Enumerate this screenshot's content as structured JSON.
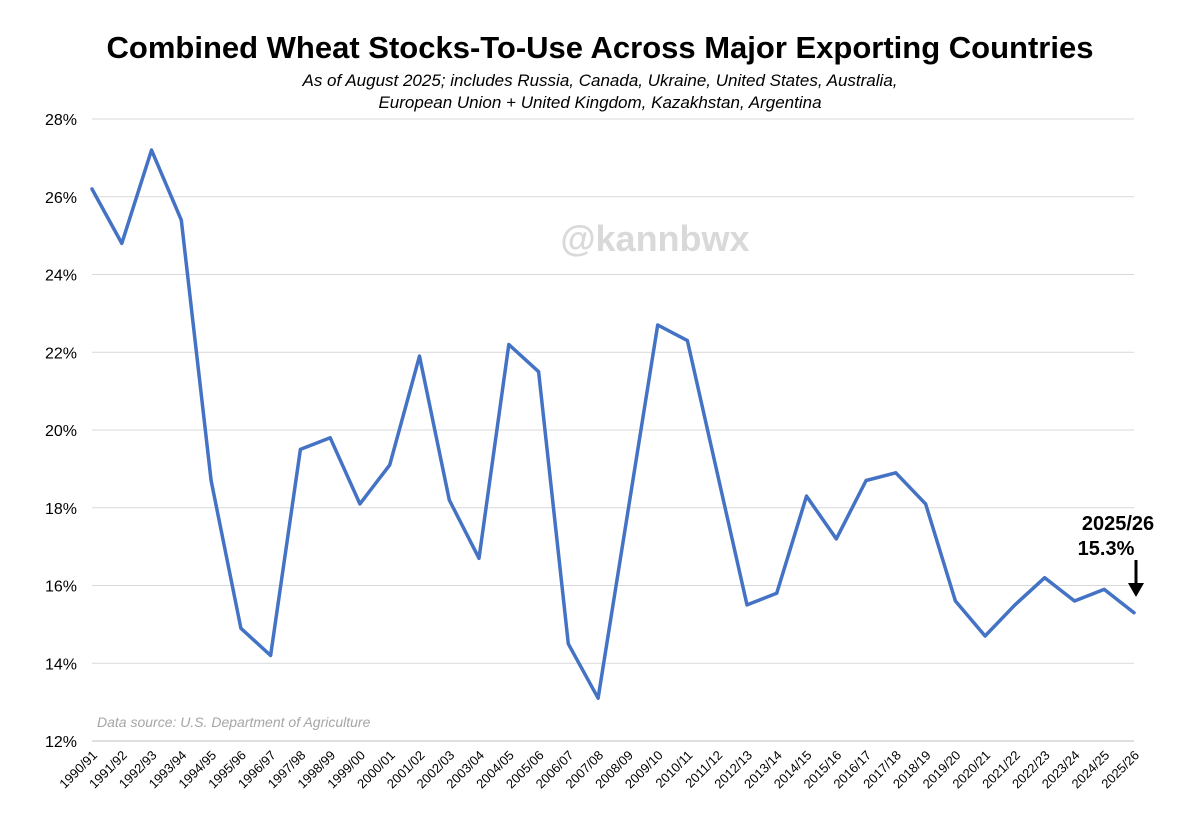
{
  "chart_data": {
    "type": "line",
    "title": "Combined Wheat Stocks-To-Use Across Major Exporting Countries",
    "subtitle_lines": [
      "As of August 2025; includes Russia, Canada, Ukraine, United States, Australia,",
      "European Union + United Kingdom, Kazakhstan, Argentina"
    ],
    "xlabel": "",
    "ylabel": "",
    "ylim": [
      12,
      28
    ],
    "y_ticks": [
      12,
      14,
      16,
      18,
      20,
      22,
      24,
      26,
      28
    ],
    "y_tick_labels": [
      "12%",
      "14%",
      "16%",
      "18%",
      "20%",
      "22%",
      "24%",
      "26%",
      "28%"
    ],
    "grid": true,
    "series": [
      {
        "name": "Stocks-to-use",
        "color": "#4472C4",
        "values": [
          26.2,
          24.8,
          27.2,
          25.4,
          18.7,
          14.9,
          14.2,
          19.5,
          19.8,
          18.1,
          19.1,
          21.9,
          18.2,
          16.7,
          22.2,
          21.5,
          14.5,
          13.1,
          17.9,
          22.7,
          22.3,
          18.9,
          15.5,
          15.8,
          18.3,
          17.2,
          18.7,
          18.9,
          18.1,
          15.6,
          14.7,
          15.5,
          16.2,
          15.6,
          15.9,
          15.3
        ]
      }
    ],
    "categories": [
      "1990/91",
      "1991/92",
      "1992/93",
      "1993/94",
      "1994/95",
      "1995/96",
      "1996/97",
      "1997/98",
      "1998/99",
      "1999/00",
      "2000/01",
      "2001/02",
      "2002/03",
      "2003/04",
      "2004/05",
      "2005/06",
      "2006/07",
      "2007/08",
      "2008/09",
      "2009/10",
      "2010/11",
      "2011/12",
      "2012/13",
      "2013/14",
      "2014/15",
      "2015/16",
      "2016/17",
      "2017/18",
      "2018/19",
      "2019/20",
      "2020/21",
      "2021/22",
      "2022/23",
      "2023/24",
      "2024/25",
      "2025/26"
    ],
    "annotation": {
      "line1": "2025/26",
      "line2": "15.3%"
    },
    "watermark": "@kannbwx",
    "source": "Data source: U.S. Department of Agriculture"
  }
}
